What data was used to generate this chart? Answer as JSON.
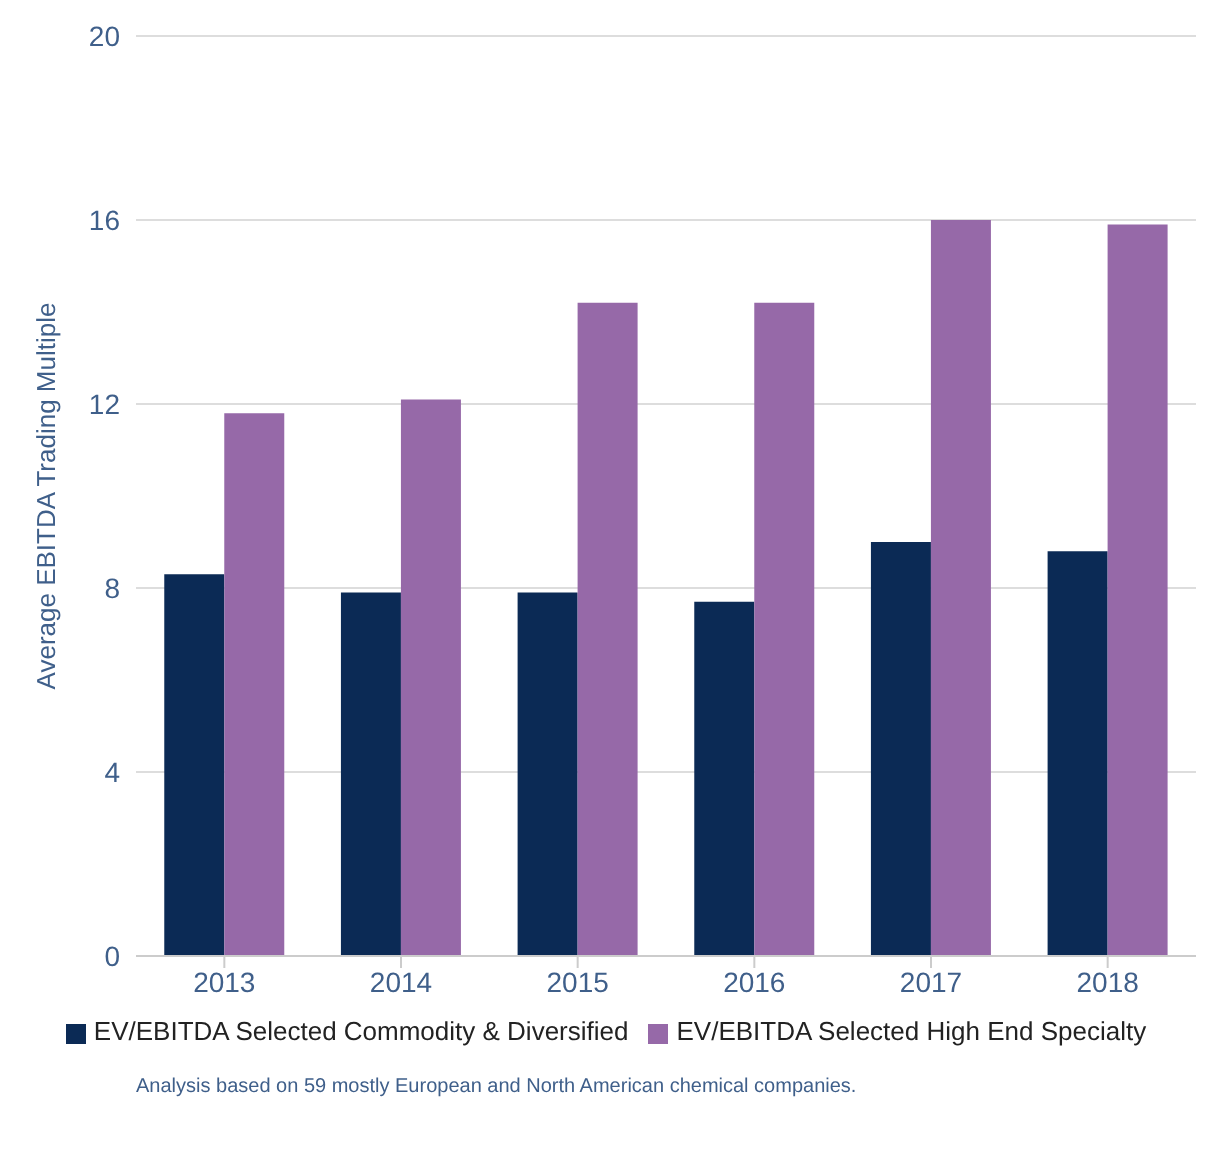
{
  "chart_data": {
    "type": "bar",
    "ylabel": "Average EBITDA Trading Multiple",
    "categories": [
      "2013",
      "2014",
      "2015",
      "2016",
      "2017",
      "2018"
    ],
    "series": [
      {
        "name": "EV/EBITDA Selected Commodity & Diversified",
        "color": "#0b2a55",
        "values": [
          8.3,
          7.9,
          7.9,
          7.7,
          9.0,
          8.8
        ]
      },
      {
        "name": "EV/EBITDA Selected High End Specialty",
        "color": "#9669a8",
        "values": [
          11.8,
          12.1,
          14.2,
          14.2,
          16.0,
          15.9
        ]
      }
    ],
    "ylim": [
      0,
      20
    ],
    "yticks": [
      0,
      4,
      8,
      12,
      16,
      20
    ],
    "grid": "y",
    "legend": "bottom",
    "annotations": [
      "Analysis based on 59 mostly European and North American chemical companies."
    ]
  }
}
